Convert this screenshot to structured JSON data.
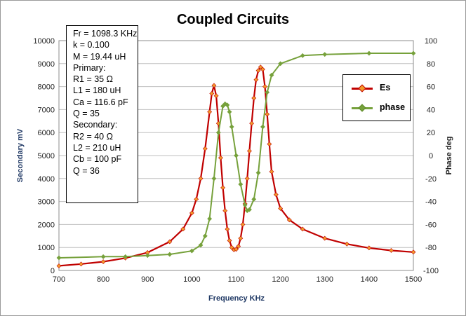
{
  "chart_data": {
    "type": "line",
    "title": "Coupled Circuits",
    "xlabel": "Frequency  KHz",
    "ylabel": "Secondary  mV",
    "y2label": "Phase  deg",
    "xlim": [
      700,
      1500
    ],
    "ylim": [
      0,
      10000
    ],
    "y2lim": [
      -100,
      100
    ],
    "x_ticks": [
      "700",
      "800",
      "900",
      "1000",
      "1100",
      "1200",
      "1300",
      "1400",
      "1500"
    ],
    "y_ticks": [
      "0",
      "1000",
      "2000",
      "3000",
      "4000",
      "5000",
      "6000",
      "7000",
      "8000",
      "9000",
      "10000"
    ],
    "y2_ticks": [
      "-100",
      "-80",
      "-60",
      "-40",
      "-20",
      "0",
      "20",
      "40",
      "60",
      "80",
      "100"
    ],
    "grid": true,
    "legend_position": "right",
    "series": [
      {
        "name": "Es",
        "axis": "left",
        "color": "#c00000",
        "marker_color": "#f39a2b",
        "x": [
          700,
          750,
          800,
          850,
          900,
          950,
          980,
          1000,
          1010,
          1020,
          1030,
          1040,
          1045,
          1050,
          1055,
          1060,
          1065,
          1070,
          1075,
          1080,
          1085,
          1090,
          1095,
          1100,
          1105,
          1110,
          1115,
          1120,
          1125,
          1130,
          1135,
          1140,
          1145,
          1150,
          1155,
          1160,
          1165,
          1170,
          1175,
          1180,
          1190,
          1200,
          1220,
          1250,
          1300,
          1350,
          1400,
          1450,
          1500
        ],
        "values": [
          200,
          280,
          380,
          540,
          780,
          1250,
          1800,
          2500,
          3100,
          4000,
          5300,
          6900,
          7700,
          8050,
          7600,
          6400,
          4900,
          3600,
          2600,
          1800,
          1300,
          1000,
          900,
          920,
          1050,
          1400,
          2000,
          2900,
          4000,
          5200,
          6400,
          7500,
          8300,
          8700,
          8850,
          8750,
          8000,
          6800,
          5500,
          4300,
          3300,
          2700,
          2200,
          1800,
          1400,
          1150,
          980,
          870,
          800
        ]
      },
      {
        "name": "phase",
        "axis": "right",
        "color": "#76a13b",
        "marker_color": "#76a13b",
        "x": [
          700,
          800,
          850,
          900,
          950,
          1000,
          1020,
          1030,
          1040,
          1050,
          1060,
          1070,
          1075,
          1080,
          1085,
          1090,
          1100,
          1110,
          1120,
          1125,
          1130,
          1140,
          1150,
          1160,
          1170,
          1180,
          1200,
          1250,
          1300,
          1400,
          1500
        ],
        "values": [
          -89,
          -88,
          -88,
          -87,
          -86,
          -83,
          -78,
          -70,
          -55,
          -20,
          20,
          43,
          45,
          44,
          38,
          25,
          0,
          -25,
          -43,
          -48,
          -47,
          -38,
          -15,
          25,
          55,
          70,
          80,
          87,
          88,
          89,
          89
        ]
      }
    ]
  },
  "params": {
    "lines": [
      "Fr = 1098.3  KHz",
      "k = 0.100",
      "M = 19.44 uH",
      "Primary:",
      "R1 = 35  Ω",
      "L1 = 180 uH",
      "Ca = 116.6  pF",
      "Q = 35",
      "Secondary:",
      "R2 = 40  Ω",
      "L2 = 210 uH",
      "Cb = 100  pF",
      "Q = 36"
    ]
  }
}
